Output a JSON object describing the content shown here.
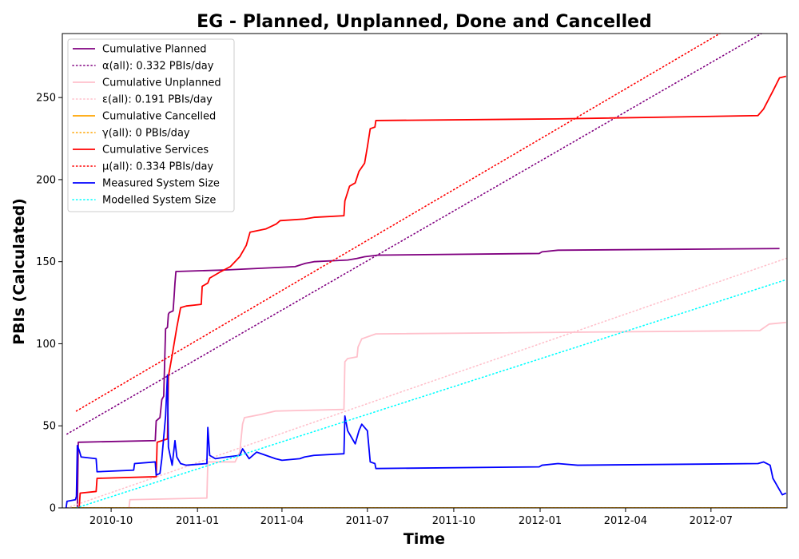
{
  "chart_data": {
    "type": "line",
    "title": "EG - Planned, Unplanned, Done  and Cancelled",
    "xlabel": "Time",
    "ylabel": "PBIs (Calculated)",
    "xlim": [
      "2010-08-10",
      "2012-09-20"
    ],
    "ylim": [
      0,
      289
    ],
    "x_ticks": [
      "2010-10",
      "2011-01",
      "2011-04",
      "2011-07",
      "2011-10",
      "2012-01",
      "2012-04",
      "2012-07"
    ],
    "y_ticks": [
      0,
      50,
      100,
      150,
      200,
      250
    ],
    "grid": false,
    "legend_position": "upper-left",
    "series": [
      {
        "name": "Cumulative Planned",
        "color": "#800080",
        "style": "solid",
        "points": [
          [
            "2010-08-26",
            0
          ],
          [
            "2010-08-27",
            40
          ],
          [
            "2010-11-17",
            41
          ],
          [
            "2010-11-18",
            53
          ],
          [
            "2010-11-22",
            55
          ],
          [
            "2010-11-24",
            66
          ],
          [
            "2010-11-26",
            68
          ],
          [
            "2010-11-28",
            109
          ],
          [
            "2010-11-30",
            110
          ],
          [
            "2010-12-01",
            118
          ],
          [
            "2010-12-02",
            119
          ],
          [
            "2010-12-06",
            120
          ],
          [
            "2010-12-07",
            128
          ],
          [
            "2010-12-08",
            137
          ],
          [
            "2010-12-09",
            144
          ],
          [
            "2011-02-01",
            145
          ],
          [
            "2011-04-15",
            147
          ],
          [
            "2011-04-26",
            149
          ],
          [
            "2011-05-05",
            150
          ],
          [
            "2011-06-10",
            151
          ],
          [
            "2011-06-20",
            152
          ],
          [
            "2011-06-28",
            153
          ],
          [
            "2011-07-12",
            154
          ],
          [
            "2011-12-31",
            155
          ],
          [
            "2012-01-03",
            156
          ],
          [
            "2012-01-20",
            157
          ],
          [
            "2012-09-12",
            158
          ]
        ]
      },
      {
        "name": "α(all): 0.332 PBIs/day",
        "color": "#800080",
        "style": "dotted",
        "points": [
          [
            "2010-08-15",
            45
          ],
          [
            "2012-09-20",
            298
          ]
        ]
      },
      {
        "name": "Cumulative Unplanned",
        "color": "#ffc0cb",
        "style": "solid",
        "points": [
          [
            "2010-10-20",
            0
          ],
          [
            "2010-10-21",
            5
          ],
          [
            "2011-01-11",
            6
          ],
          [
            "2011-01-12",
            28
          ],
          [
            "2011-02-10",
            28
          ],
          [
            "2011-02-15",
            34
          ],
          [
            "2011-02-18",
            51
          ],
          [
            "2011-02-20",
            55
          ],
          [
            "2011-03-10",
            57
          ],
          [
            "2011-03-25",
            59
          ],
          [
            "2011-06-06",
            60
          ],
          [
            "2011-06-07",
            89
          ],
          [
            "2011-06-10",
            91
          ],
          [
            "2011-06-20",
            92
          ],
          [
            "2011-06-21",
            98
          ],
          [
            "2011-06-25",
            103
          ],
          [
            "2011-07-10",
            106
          ],
          [
            "2012-08-22",
            108
          ],
          [
            "2012-09-01",
            112
          ],
          [
            "2012-09-19",
            113
          ]
        ]
      },
      {
        "name": "ε(all): 0.191 PBIs/day",
        "color": "#ffc0cb",
        "style": "dotted",
        "points": [
          [
            "2010-08-15",
            0
          ],
          [
            "2012-09-19",
            152
          ]
        ]
      },
      {
        "name": "Cumulative Cancelled",
        "color": "#ffa500",
        "style": "solid",
        "points": [
          [
            "2010-08-20",
            0
          ],
          [
            "2012-09-19",
            0
          ]
        ]
      },
      {
        "name": "γ(all): 0 PBIs/day",
        "color": "#ffa500",
        "style": "dotted",
        "points": [
          [
            "2010-08-20",
            0
          ],
          [
            "2012-09-19",
            0
          ]
        ]
      },
      {
        "name": "Cumulative Services",
        "color": "#ff0000",
        "style": "solid",
        "points": [
          [
            "2010-08-28",
            0
          ],
          [
            "2010-08-29",
            9
          ],
          [
            "2010-09-15",
            10
          ],
          [
            "2010-09-16",
            18
          ],
          [
            "2010-11-18",
            19
          ],
          [
            "2010-11-19",
            40
          ],
          [
            "2010-11-30",
            42
          ],
          [
            "2010-12-01",
            80
          ],
          [
            "2010-12-05",
            93
          ],
          [
            "2010-12-10",
            110
          ],
          [
            "2010-12-14",
            122
          ],
          [
            "2010-12-20",
            123
          ],
          [
            "2011-01-05",
            124
          ],
          [
            "2011-01-06",
            135
          ],
          [
            "2011-01-12",
            137
          ],
          [
            "2011-01-14",
            140
          ],
          [
            "2011-01-26",
            144
          ],
          [
            "2011-02-05",
            147
          ],
          [
            "2011-02-15",
            153
          ],
          [
            "2011-02-22",
            160
          ],
          [
            "2011-02-26",
            168
          ],
          [
            "2011-03-15",
            170
          ],
          [
            "2011-03-26",
            173
          ],
          [
            "2011-03-30",
            175
          ],
          [
            "2011-04-25",
            176
          ],
          [
            "2011-05-05",
            177
          ],
          [
            "2011-06-06",
            178
          ],
          [
            "2011-06-07",
            187
          ],
          [
            "2011-06-12",
            196
          ],
          [
            "2011-06-18",
            198
          ],
          [
            "2011-06-22",
            205
          ],
          [
            "2011-06-28",
            210
          ],
          [
            "2011-07-01",
            220
          ],
          [
            "2011-07-04",
            231
          ],
          [
            "2011-07-09",
            232
          ],
          [
            "2011-07-10",
            236
          ],
          [
            "2012-01-20",
            237
          ],
          [
            "2012-08-20",
            239
          ],
          [
            "2012-08-26",
            243
          ],
          [
            "2012-09-05",
            254
          ],
          [
            "2012-09-12",
            262
          ],
          [
            "2012-09-19",
            263
          ]
        ]
      },
      {
        "name": "μ(all): 0.334 PBIs/day",
        "color": "#ff0000",
        "style": "dotted",
        "points": [
          [
            "2010-08-25",
            59
          ],
          [
            "2012-09-20",
            313
          ]
        ]
      },
      {
        "name": "Measured System Size",
        "color": "#0000ff",
        "style": "solid",
        "points": [
          [
            "2010-08-14",
            0
          ],
          [
            "2010-08-15",
            4
          ],
          [
            "2010-08-24",
            5
          ],
          [
            "2010-08-25",
            7
          ],
          [
            "2010-08-26",
            38
          ],
          [
            "2010-08-28",
            35
          ],
          [
            "2010-08-30",
            31
          ],
          [
            "2010-09-15",
            30
          ],
          [
            "2010-09-16",
            22
          ],
          [
            "2010-10-25",
            23
          ],
          [
            "2010-10-26",
            27
          ],
          [
            "2010-11-17",
            28
          ],
          [
            "2010-11-18",
            20
          ],
          [
            "2010-11-22",
            21
          ],
          [
            "2010-11-24",
            30
          ],
          [
            "2010-11-28",
            56
          ],
          [
            "2010-11-30",
            81
          ],
          [
            "2010-12-01",
            37
          ],
          [
            "2010-12-05",
            26
          ],
          [
            "2010-12-08",
            41
          ],
          [
            "2010-12-10",
            31
          ],
          [
            "2010-12-14",
            27
          ],
          [
            "2010-12-20",
            26
          ],
          [
            "2011-01-11",
            27
          ],
          [
            "2011-01-12",
            49
          ],
          [
            "2011-01-14",
            32
          ],
          [
            "2011-01-20",
            30
          ],
          [
            "2011-02-01",
            31
          ],
          [
            "2011-02-15",
            32
          ],
          [
            "2011-02-18",
            36
          ],
          [
            "2011-02-25",
            30
          ],
          [
            "2011-03-05",
            34
          ],
          [
            "2011-03-25",
            30
          ],
          [
            "2011-04-01",
            29
          ],
          [
            "2011-04-20",
            30
          ],
          [
            "2011-04-25",
            31
          ],
          [
            "2011-05-05",
            32
          ],
          [
            "2011-06-06",
            33
          ],
          [
            "2011-06-07",
            56
          ],
          [
            "2011-06-10",
            47
          ],
          [
            "2011-06-18",
            39
          ],
          [
            "2011-06-22",
            47
          ],
          [
            "2011-06-25",
            51
          ],
          [
            "2011-07-01",
            47
          ],
          [
            "2011-07-04",
            28
          ],
          [
            "2011-07-09",
            27
          ],
          [
            "2011-07-10",
            24
          ],
          [
            "2011-12-31",
            25
          ],
          [
            "2012-01-03",
            26
          ],
          [
            "2012-01-20",
            27
          ],
          [
            "2012-02-10",
            26
          ],
          [
            "2012-08-20",
            27
          ],
          [
            "2012-08-26",
            28
          ],
          [
            "2012-09-02",
            26
          ],
          [
            "2012-09-05",
            18
          ],
          [
            "2012-09-12",
            11
          ],
          [
            "2012-09-15",
            8
          ],
          [
            "2012-09-19",
            9
          ]
        ]
      },
      {
        "name": "Modelled System Size",
        "color": "#00ffff",
        "style": "dotted",
        "points": [
          [
            "2010-08-25",
            0
          ],
          [
            "2012-09-19",
            139
          ]
        ]
      }
    ]
  }
}
